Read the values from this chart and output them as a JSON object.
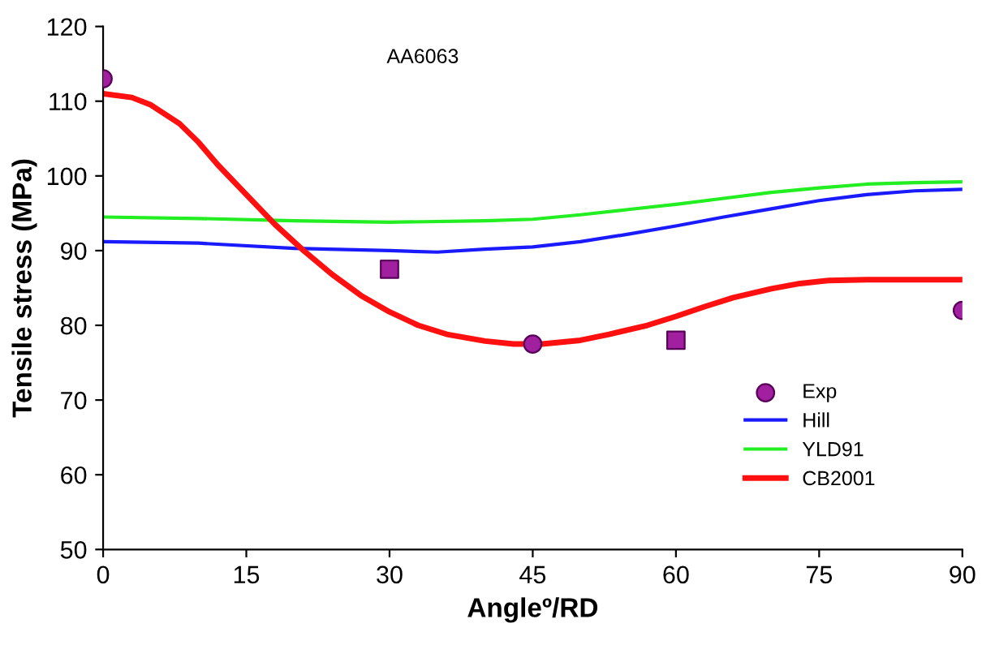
{
  "chart_data": {
    "type": "line",
    "xlabel": "Angleº/RD",
    "ylabel": "Tensile stress (MPa)",
    "annotations": [
      "AA6063"
    ],
    "xlim": [
      0,
      90
    ],
    "xticks": [
      0,
      15,
      30,
      45,
      60,
      75,
      90
    ],
    "ylim": [
      50,
      120
    ],
    "yticks": [
      50,
      60,
      70,
      80,
      90,
      100,
      110,
      120
    ],
    "grid": false,
    "legend": "bottom right",
    "marker": "none",
    "line_style": "solid",
    "series": [
      {
        "name": "Exp",
        "type": "scatter",
        "marker": "circle",
        "color": "#a020a0",
        "x": [
          0,
          45,
          90
        ],
        "values": [
          113,
          77.5,
          82
        ]
      },
      {
        "type": "scatter",
        "marker": "square",
        "color": "#a020a0",
        "x": [
          30,
          60
        ],
        "values": [
          87.5,
          78
        ]
      },
      {
        "name": "Hill",
        "color": "#1a1aff",
        "x": [
          0,
          10,
          20,
          30,
          35,
          40,
          45,
          50,
          55,
          60,
          65,
          70,
          75,
          80,
          85,
          90
        ],
        "values": [
          91.2,
          91,
          90.3,
          90,
          89.8,
          90.2,
          90.5,
          91.2,
          92.2,
          93.3,
          94.5,
          95.6,
          96.7,
          97.5,
          98,
          98.2
        ]
      },
      {
        "name": "YLD91",
        "color": "#22ee22",
        "x": [
          0,
          10,
          20,
          30,
          40,
          45,
          50,
          55,
          60,
          65,
          70,
          75,
          80,
          85,
          90
        ],
        "values": [
          94.5,
          94.3,
          94,
          93.8,
          94,
          94.2,
          94.8,
          95.5,
          96.2,
          97,
          97.8,
          98.4,
          98.9,
          99.1,
          99.2
        ]
      },
      {
        "name": "CB2001",
        "color": "#ff1010",
        "x": [
          0,
          3,
          5,
          8,
          10,
          12,
          15,
          18,
          21,
          24,
          27,
          30,
          33,
          36,
          40,
          43,
          46,
          50,
          53,
          57,
          60,
          63,
          66,
          70,
          73,
          76,
          80,
          90
        ],
        "values": [
          111,
          110.5,
          109.5,
          107,
          104.5,
          101.5,
          97.5,
          93.5,
          90,
          86.8,
          84,
          81.8,
          80,
          78.8,
          77.9,
          77.5,
          77.5,
          78,
          78.8,
          80,
          81.2,
          82.5,
          83.7,
          84.9,
          85.6,
          86,
          86.1,
          86.1
        ]
      }
    ]
  }
}
